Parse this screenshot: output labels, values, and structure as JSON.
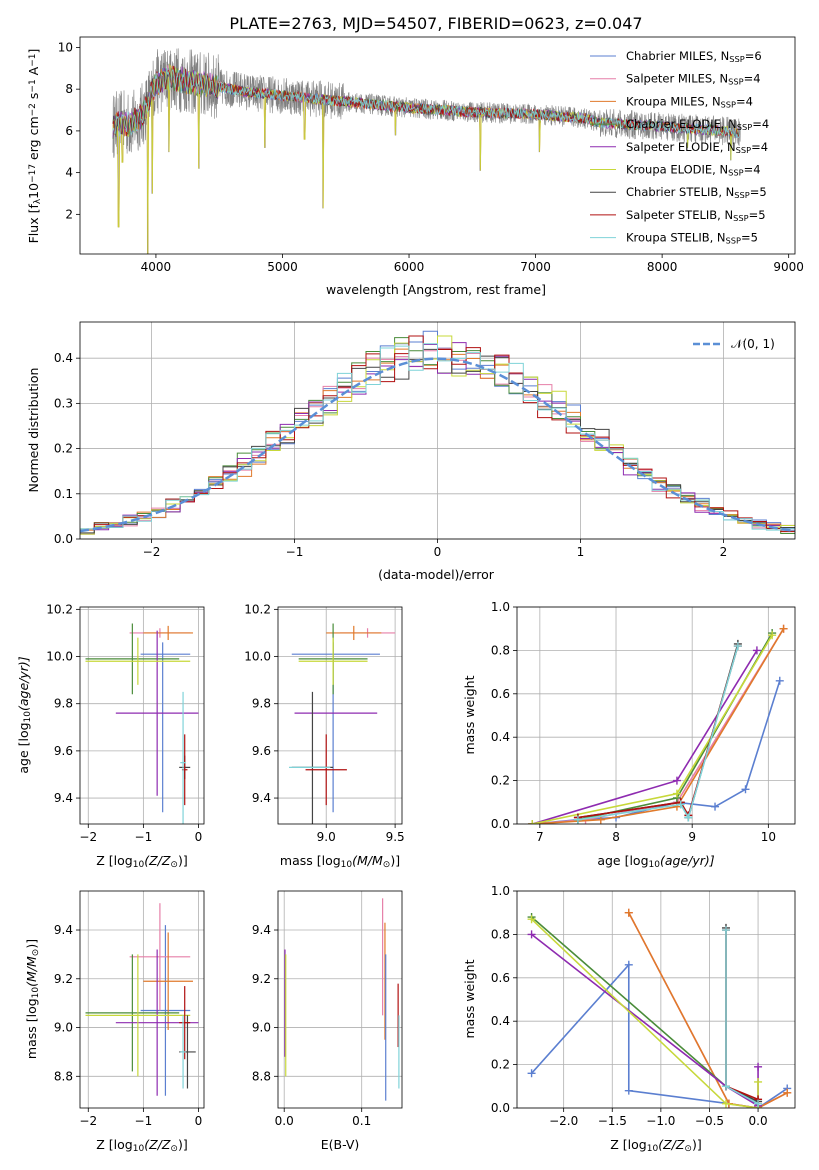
{
  "figure": {
    "title": "PLATE=2763, MJD=54507, FIBERID=0623, z=0.047"
  },
  "colors": {
    "chabrier_miles": "#5b7fd0",
    "salpeter_miles": "#e67fa8",
    "kroupa_miles": "#e07a2b",
    "chabrier_elodie": "#4a8c3a",
    "salpeter_elodie": "#8e2bb0",
    "kroupa_elodie": "#c7d83a",
    "chabrier_stelib": "#444444",
    "salpeter_stelib": "#b01010",
    "kroupa_stelib": "#7fd3d8",
    "data": "#808080",
    "normal": "#5b8fd6",
    "grid": "#b0b0b0"
  },
  "chart_data": [
    {
      "id": "spectrum",
      "type": "line",
      "xlabel": "wavelength [Angstrom, rest frame]",
      "ylabel": "Flux [f",
      "ylabel_sub": "λ",
      "ylabel_mid": "10",
      "ylabel_sup1": "−17",
      "ylabel_mid2": " erg cm",
      "ylabel_sup2": "−2",
      "ylabel_mid3": " s",
      "ylabel_sup3": "−1",
      "ylabel_mid4": " A",
      "ylabel_sup4": "−1",
      "ylabel_end": "]",
      "xlim": [
        3400,
        9050
      ],
      "ylim": [
        0.1,
        10.5
      ],
      "xticks": [
        4000,
        5000,
        6000,
        7000,
        8000,
        9000
      ],
      "xtick_labels": [
        "4000",
        "5000",
        "6000",
        "7000",
        "8000",
        "9000"
      ],
      "yticks": [
        2,
        4,
        6,
        8,
        10
      ],
      "ytick_labels": [
        "2",
        "4",
        "6",
        "8",
        "10"
      ],
      "continuum": [
        [
          3650,
          6.2
        ],
        [
          3700,
          6.4
        ],
        [
          3800,
          6.3
        ],
        [
          3900,
          6.8
        ],
        [
          4000,
          8.3
        ],
        [
          4100,
          8.6
        ],
        [
          4300,
          8.3
        ],
        [
          4500,
          8.1
        ],
        [
          4800,
          7.8
        ],
        [
          5000,
          7.7
        ],
        [
          5500,
          7.4
        ],
        [
          6000,
          7.1
        ],
        [
          6500,
          6.9
        ],
        [
          7000,
          6.8
        ],
        [
          7400,
          6.6
        ],
        [
          7500,
          6.4
        ],
        [
          8000,
          6.2
        ],
        [
          8500,
          6.0
        ],
        [
          8600,
          5.9
        ]
      ],
      "data_range": [
        3660,
        8620
      ],
      "absorption_lines": [
        [
          3705,
          1.4
        ],
        [
          3735,
          4.5
        ],
        [
          3935,
          0.1
        ],
        [
          3970,
          3.0
        ],
        [
          4102,
          5.0
        ],
        [
          4340,
          4.2
        ],
        [
          4861,
          5.2
        ],
        [
          5175,
          5.6
        ],
        [
          5320,
          2.3
        ],
        [
          5893,
          5.8
        ],
        [
          6563,
          4.1
        ],
        [
          7030,
          5.0
        ],
        [
          8200,
          5.2
        ],
        [
          8542,
          4.6
        ],
        [
          8662,
          4.9
        ]
      ],
      "model_cutoffs": [
        {
          "series": "kroupa_miles",
          "end": 7420
        }
      ],
      "legend": [
        {
          "key": "chabrier_miles",
          "label": "Chabrier MILES, N",
          "sub": "SSP",
          "tail": "=6"
        },
        {
          "key": "salpeter_miles",
          "label": "Salpeter MILES, N",
          "sub": "SSP",
          "tail": "=4"
        },
        {
          "key": "kroupa_miles",
          "label": "Kroupa MILES, N",
          "sub": "SSP",
          "tail": "=4"
        },
        {
          "key": "chabrier_elodie",
          "label": "Chabrier ELODIE, N",
          "sub": "SSP",
          "tail": "=4"
        },
        {
          "key": "salpeter_elodie",
          "label": "Salpeter ELODIE, N",
          "sub": "SSP",
          "tail": "=4"
        },
        {
          "key": "kroupa_elodie",
          "label": "Kroupa ELODIE, N",
          "sub": "SSP",
          "tail": "=4"
        },
        {
          "key": "chabrier_stelib",
          "label": "Chabrier STELIB, N",
          "sub": "SSP",
          "tail": "=5"
        },
        {
          "key": "salpeter_stelib",
          "label": "Salpeter STELIB, N",
          "sub": "SSP",
          "tail": "=5"
        },
        {
          "key": "kroupa_stelib",
          "label": "Kroupa STELIB, N",
          "sub": "SSP",
          "tail": "=5"
        }
      ]
    },
    {
      "id": "residuals",
      "type": "step",
      "xlabel": "(data-model)/error",
      "ylabel": "Normed distribution",
      "xlim": [
        -2.5,
        2.5
      ],
      "ylim": [
        0,
        0.48
      ],
      "xticks": [
        -2,
        -1,
        0,
        1,
        2
      ],
      "xtick_labels": [
        "−2",
        "−1",
        "0",
        "1",
        "2"
      ],
      "yticks": [
        0.0,
        0.1,
        0.2,
        0.3,
        0.4
      ],
      "ytick_labels": [
        "0.0",
        "0.1",
        "0.2",
        "0.3",
        "0.4"
      ],
      "bin_width": 0.1,
      "legend_label": "𝒩(0, 1)",
      "series": [
        {
          "key": "chabrier_miles",
          "seed": 11
        },
        {
          "key": "salpeter_miles",
          "seed": 23
        },
        {
          "key": "kroupa_miles",
          "seed": 37
        },
        {
          "key": "chabrier_elodie",
          "seed": 41
        },
        {
          "key": "salpeter_elodie",
          "seed": 53
        },
        {
          "key": "kroupa_elodie",
          "seed": 67
        },
        {
          "key": "chabrier_stelib",
          "seed": 71
        },
        {
          "key": "salpeter_stelib",
          "seed": 83
        },
        {
          "key": "kroupa_stelib",
          "seed": 97
        }
      ]
    },
    {
      "id": "age_vs_z",
      "type": "errorbar",
      "xlabel": "Z [log",
      "xlabel_sub": "10",
      "xlabel_end": "(Z/Z",
      "xlabel_sub2": "⊙",
      "xlabel_tail": ")]",
      "ylabel": "age  [log",
      "ylabel_sub": "10",
      "ylabel_end": "(age/yr)]",
      "xlim": [
        -2.15,
        0.1
      ],
      "ylim": [
        9.29,
        10.21
      ],
      "xticks": [
        -2,
        -1,
        0
      ],
      "xtick_labels": [
        "−2",
        "−1",
        "0"
      ],
      "yticks": [
        9.4,
        9.6,
        9.8,
        10.0,
        10.2
      ],
      "ytick_labels": [
        "9.4",
        "9.6",
        "9.8",
        "10.0",
        "10.2"
      ],
      "points": [
        {
          "key": "chabrier_miles",
          "x": -0.6,
          "y": 10.01,
          "xerr": 0.45,
          "yerr": 0.0
        },
        {
          "key": "chabrier_miles",
          "x": -0.65,
          "y": 9.7,
          "xerr": 0.0,
          "yerr": 0.36
        },
        {
          "key": "salpeter_miles",
          "x": -0.7,
          "y": 10.1,
          "xerr": 0.55,
          "yerr": 0.02
        },
        {
          "key": "kroupa_miles",
          "x": -0.55,
          "y": 10.1,
          "xerr": 0.45,
          "yerr": 0.03
        },
        {
          "key": "chabrier_elodie",
          "x": -1.2,
          "y": 9.99,
          "xerr": 0.85,
          "yerr": 0.15
        },
        {
          "key": "salpeter_elodie",
          "x": -0.75,
          "y": 9.76,
          "xerr": 0.75,
          "yerr": 0.35
        },
        {
          "key": "kroupa_elodie",
          "x": -1.1,
          "y": 9.98,
          "xerr": 0.95,
          "yerr": 0.1
        },
        {
          "key": "chabrier_stelib",
          "x": -0.25,
          "y": 9.53,
          "xerr": 0.1,
          "yerr": 0.05
        },
        {
          "key": "salpeter_stelib",
          "x": -0.25,
          "y": 9.52,
          "xerr": 0.05,
          "yerr": 0.15
        },
        {
          "key": "kroupa_stelib",
          "x": -0.28,
          "y": 9.55,
          "xerr": 0.05,
          "yerr": 0.3
        }
      ]
    },
    {
      "id": "age_vs_mass",
      "type": "errorbar",
      "xlabel": "mass [log",
      "xlabel_sub": "10",
      "xlabel_end": "(M/M",
      "xlabel_sub2": "⊙",
      "xlabel_tail": ")]",
      "xlim": [
        8.65,
        9.55
      ],
      "ylim": [
        9.29,
        10.21
      ],
      "xticks": [
        9.0,
        9.5
      ],
      "xtick_labels": [
        "9.0",
        "9.5"
      ],
      "yticks": [
        9.4,
        9.6,
        9.8,
        10.0,
        10.2
      ],
      "ytick_labels": [
        "9.4",
        "9.6",
        "9.8",
        "10.0",
        "10.2"
      ],
      "points": [
        {
          "key": "chabrier_miles",
          "x": 9.07,
          "y": 10.01,
          "xerr": 0.32,
          "yerr": 0.0
        },
        {
          "key": "chabrier_miles",
          "x": 9.05,
          "y": 9.7,
          "xerr": 0.0,
          "yerr": 0.36
        },
        {
          "key": "salpeter_miles",
          "x": 9.3,
          "y": 10.1,
          "xerr": 0.2,
          "yerr": 0.02
        },
        {
          "key": "kroupa_miles",
          "x": 9.2,
          "y": 10.1,
          "xerr": 0.2,
          "yerr": 0.03
        },
        {
          "key": "chabrier_elodie",
          "x": 9.05,
          "y": 9.99,
          "xerr": 0.25,
          "yerr": 0.15
        },
        {
          "key": "salpeter_elodie",
          "x": 9.07,
          "y": 9.76,
          "xerr": 0.3,
          "yerr": 0.0
        },
        {
          "key": "kroupa_elodie",
          "x": 9.05,
          "y": 9.98,
          "xerr": 0.25,
          "yerr": 0.1
        },
        {
          "key": "chabrier_stelib",
          "x": 8.9,
          "y": 9.53,
          "xerr": 0.15,
          "yerr": 0.32
        },
        {
          "key": "salpeter_stelib",
          "x": 9.0,
          "y": 9.52,
          "xerr": 0.15,
          "yerr": 0.15
        },
        {
          "key": "kroupa_stelib",
          "x": 8.88,
          "y": 9.53,
          "xerr": 0.15,
          "yerr": 0.0
        }
      ]
    },
    {
      "id": "weight_vs_age",
      "type": "line",
      "xlabel": "age  [log",
      "xlabel_sub": "10",
      "xlabel_end": "(age/yr)]",
      "ylabel": "mass weight",
      "xlim": [
        6.7,
        10.35
      ],
      "ylim": [
        0,
        1.0
      ],
      "xticks": [
        7,
        8,
        9,
        10
      ],
      "xtick_labels": [
        "7",
        "8",
        "9",
        "10"
      ],
      "yticks": [
        0.0,
        0.2,
        0.4,
        0.6,
        0.8,
        1.0
      ],
      "ytick_labels": [
        "0.0",
        "0.2",
        "0.4",
        "0.6",
        "0.8",
        "1.0"
      ],
      "series": [
        {
          "key": "chabrier_miles",
          "x": [
            6.9,
            7.5,
            8.0,
            8.8,
            9.3,
            9.7,
            10.15
          ],
          "y": [
            0.0,
            0.02,
            0.03,
            0.1,
            0.08,
            0.16,
            0.66
          ]
        },
        {
          "key": "salpeter_miles",
          "x": [
            6.9,
            7.6,
            8.8,
            10.2
          ],
          "y": [
            0.0,
            0.02,
            0.1,
            0.9
          ]
        },
        {
          "key": "kroupa_miles",
          "x": [
            6.9,
            7.8,
            8.8,
            10.2
          ],
          "y": [
            0.0,
            0.02,
            0.08,
            0.9
          ]
        },
        {
          "key": "chabrier_elodie",
          "x": [
            7.5,
            8.8,
            10.05
          ],
          "y": [
            0.02,
            0.12,
            0.88
          ]
        },
        {
          "key": "salpeter_elodie",
          "x": [
            6.9,
            8.8,
            9.85
          ],
          "y": [
            0.0,
            0.2,
            0.8
          ]
        },
        {
          "key": "kroupa_elodie",
          "x": [
            6.9,
            8.8,
            10.05
          ],
          "y": [
            0.0,
            0.14,
            0.87
          ]
        },
        {
          "key": "chabrier_stelib",
          "x": [
            7.5,
            8.85,
            8.95,
            9.6
          ],
          "y": [
            0.03,
            0.1,
            0.03,
            0.83
          ]
        },
        {
          "key": "salpeter_stelib",
          "x": [
            7.5,
            8.85,
            8.95,
            9.6
          ],
          "y": [
            0.03,
            0.1,
            0.04,
            0.82
          ]
        },
        {
          "key": "kroupa_stelib",
          "x": [
            7.5,
            8.85,
            8.95,
            9.6
          ],
          "y": [
            0.02,
            0.09,
            0.03,
            0.82
          ]
        }
      ]
    },
    {
      "id": "mass_vs_z",
      "type": "errorbar",
      "xlabel": "Z [log",
      "xlabel_sub": "10",
      "xlabel_end": "(Z/Z",
      "xlabel_sub2": "⊙",
      "xlabel_tail": ")]",
      "ylabel": "mass [log",
      "ylabel_sub": "10",
      "ylabel_end": "(M/M",
      "ylabel_sub2": "⊙",
      "ylabel_tail": ")]",
      "xlim": [
        -2.15,
        0.1
      ],
      "ylim": [
        8.67,
        9.56
      ],
      "xticks": [
        -2,
        -1,
        0
      ],
      "xtick_labels": [
        "−2",
        "−1",
        "0"
      ],
      "yticks": [
        8.8,
        9.0,
        9.2,
        9.4
      ],
      "ytick_labels": [
        "8.8",
        "9.0",
        "9.2",
        "9.4"
      ],
      "points": [
        {
          "key": "chabrier_miles",
          "x": -0.6,
          "y": 9.07,
          "xerr": 0.45,
          "yerr": 0.35
        },
        {
          "key": "salpeter_miles",
          "x": -0.7,
          "y": 9.29,
          "xerr": 0.55,
          "yerr": 0.22
        },
        {
          "key": "kroupa_miles",
          "x": -0.55,
          "y": 9.19,
          "xerr": 0.45,
          "yerr": 0.2
        },
        {
          "key": "chabrier_elodie",
          "x": -1.2,
          "y": 9.06,
          "xerr": 0.85,
          "yerr": 0.24
        },
        {
          "key": "salpeter_elodie",
          "x": -0.75,
          "y": 9.02,
          "xerr": 0.75,
          "yerr": 0.3
        },
        {
          "key": "kroupa_elodie",
          "x": -1.1,
          "y": 9.05,
          "xerr": 0.95,
          "yerr": 0.25
        },
        {
          "key": "chabrier_stelib",
          "x": -0.2,
          "y": 8.9,
          "xerr": 0.15,
          "yerr": 0.15
        },
        {
          "key": "salpeter_stelib",
          "x": -0.25,
          "y": 9.02,
          "xerr": 0.1,
          "yerr": 0.15
        },
        {
          "key": "kroupa_stelib",
          "x": -0.28,
          "y": 8.9,
          "xerr": 0.05,
          "yerr": 0.15
        }
      ]
    },
    {
      "id": "mass_vs_ebv",
      "type": "errorbar",
      "xlabel": "E(B-V)",
      "xlim": [
        -0.008,
        0.152
      ],
      "ylim": [
        8.67,
        9.56
      ],
      "xticks": [
        0.0,
        0.1
      ],
      "xtick_labels": [
        "0.0",
        "0.1"
      ],
      "yticks": [
        8.8,
        9.0,
        9.2,
        9.4
      ],
      "ytick_labels": [
        "8.8",
        "9.0",
        "9.2",
        "9.4"
      ],
      "points": [
        {
          "key": "salpeter_elodie",
          "x": 0.001,
          "y": 9.1,
          "xerr": 0.0,
          "yerr": 0.22
        },
        {
          "key": "kroupa_elodie",
          "x": 0.002,
          "y": 9.05,
          "xerr": 0.0,
          "yerr": 0.25
        },
        {
          "key": "salpeter_miles",
          "x": 0.127,
          "y": 9.29,
          "xerr": 0.0,
          "yerr": 0.24
        },
        {
          "key": "kroupa_miles",
          "x": 0.13,
          "y": 9.19,
          "xerr": 0.0,
          "yerr": 0.24
        },
        {
          "key": "chabrier_miles",
          "x": 0.131,
          "y": 9.0,
          "xerr": 0.0,
          "yerr": 0.3
        },
        {
          "key": "salpeter_stelib",
          "x": 0.147,
          "y": 9.05,
          "xerr": 0.0,
          "yerr": 0.13
        },
        {
          "key": "kroupa_stelib",
          "x": 0.148,
          "y": 8.9,
          "xerr": 0.0,
          "yerr": 0.15
        }
      ]
    },
    {
      "id": "weight_vs_z",
      "type": "line",
      "xlabel": "Z [log",
      "xlabel_sub": "10",
      "xlabel_end": "(Z/Z",
      "xlabel_sub2": "⊙",
      "xlabel_tail": ")]",
      "ylabel": "mass weight",
      "xlim": [
        -2.48,
        0.38
      ],
      "ylim": [
        0,
        1.0
      ],
      "xticks": [
        -2.0,
        -1.5,
        -1.0,
        -0.5,
        0.0
      ],
      "xtick_labels": [
        "−2.0",
        "−1.5",
        "−1.0",
        "−0.5",
        "0.0"
      ],
      "yticks": [
        0.0,
        0.2,
        0.4,
        0.6,
        0.8,
        1.0
      ],
      "ytick_labels": [
        "0.0",
        "0.2",
        "0.4",
        "0.6",
        "0.8",
        "1.0"
      ],
      "series": [
        {
          "key": "chabrier_miles",
          "x": [
            -2.33,
            -1.33,
            -1.33,
            -0.3,
            0.0,
            0.3
          ],
          "y": [
            0.16,
            0.66,
            0.08,
            0.02,
            0.0,
            0.09
          ]
        },
        {
          "key": "salpeter_miles",
          "x": [
            -1.33,
            -0.3,
            0.0,
            0.3
          ],
          "y": [
            0.9,
            0.02,
            0.0,
            0.07
          ]
        },
        {
          "key": "kroupa_miles",
          "x": [
            -1.33,
            -0.3,
            0.0,
            0.3
          ],
          "y": [
            0.9,
            0.02,
            0.0,
            0.07
          ]
        },
        {
          "key": "chabrier_elodie",
          "x": [
            -2.33,
            -0.33,
            0.0
          ],
          "y": [
            0.88,
            0.1,
            0.02
          ]
        },
        {
          "key": "salpeter_elodie",
          "x": [
            -2.33,
            -0.33,
            0.0,
            0.0
          ],
          "y": [
            0.8,
            0.1,
            0.01,
            0.19
          ]
        },
        {
          "key": "kroupa_elodie",
          "x": [
            -2.33,
            -0.33,
            0.0,
            0.0
          ],
          "y": [
            0.87,
            0.02,
            0.0,
            0.12
          ]
        },
        {
          "key": "chabrier_stelib",
          "x": [
            -0.33,
            -0.33,
            0.0
          ],
          "y": [
            0.83,
            0.1,
            0.03
          ]
        },
        {
          "key": "salpeter_stelib",
          "x": [
            -0.33,
            -0.33,
            0.0
          ],
          "y": [
            0.82,
            0.1,
            0.04
          ]
        },
        {
          "key": "kroupa_stelib",
          "x": [
            -0.33,
            -0.33,
            0.0
          ],
          "y": [
            0.82,
            0.1,
            0.02
          ]
        }
      ]
    }
  ]
}
